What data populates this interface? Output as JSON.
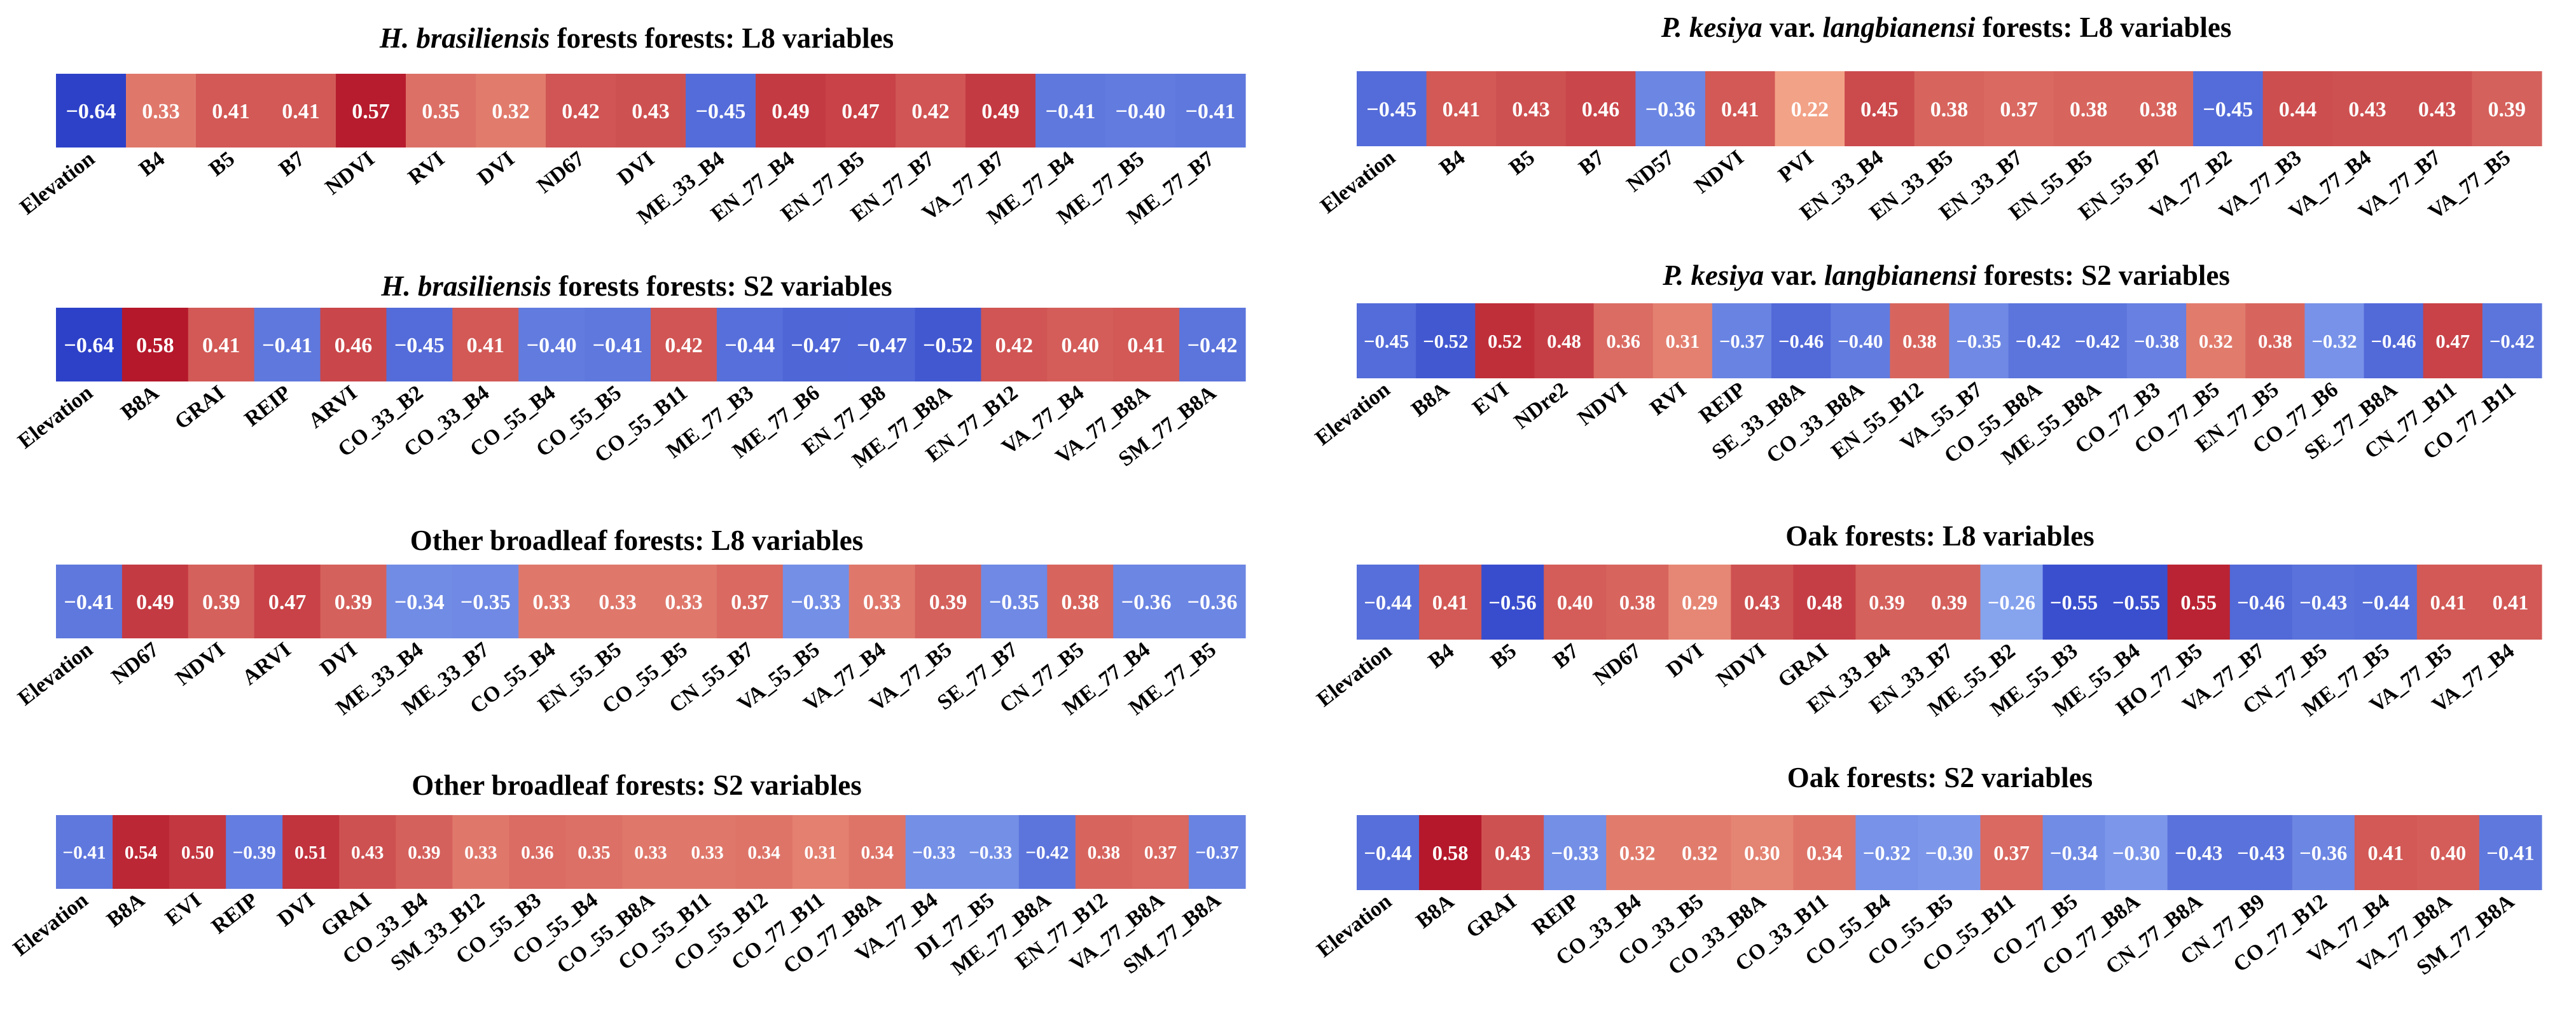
{
  "chart_data": [
    {
      "type": "heatmap",
      "title_italic": "H. brasiliensis",
      "title_rest": " forests forests: L8 variables",
      "categories": [
        "Elevation",
        "B4",
        "B5",
        "B7",
        "NDVI",
        "RVI",
        "DVI",
        "ND67",
        "DVI",
        "ME_33_B4",
        "EN_77_B4",
        "EN_77_B5",
        "EN_77_B7",
        "VA_77_B7",
        "ME_77_B4",
        "ME_77_B5",
        "ME_77_B7"
      ],
      "values": [
        -0.64,
        0.33,
        0.41,
        0.41,
        0.57,
        0.35,
        0.32,
        0.42,
        0.43,
        -0.45,
        0.49,
        0.47,
        0.42,
        0.49,
        -0.41,
        -0.4,
        -0.41
      ],
      "labels": [
        "−0.64",
        "0.33",
        "0.41",
        "0.41",
        "0.57",
        "0.35",
        "0.32",
        "0.42",
        "0.43",
        "−0.45",
        "0.49",
        "0.47",
        "0.42",
        "0.49",
        "−0.41",
        "−0.40",
        "−0.41"
      ]
    },
    {
      "type": "heatmap",
      "title_italic": "H. brasiliensis",
      "title_rest": " forests forests: S2 variables",
      "categories": [
        "Elevation",
        "B8A",
        "GRAI",
        "REIP",
        "ARVI",
        "CO_33_B2",
        "CO_33_B4",
        "CO_55_B4",
        "CO_55_B5",
        "CO_55_B11",
        "ME_77_B3",
        "ME_77_B6",
        "EN_77_B8",
        "ME_77_B8A",
        "EN_77_B12",
        "VA_77_B4",
        "VA_77_B8A",
        "SM_77_B8A"
      ],
      "values": [
        -0.64,
        0.58,
        0.41,
        -0.41,
        0.46,
        -0.45,
        0.41,
        -0.4,
        -0.41,
        0.42,
        -0.44,
        -0.47,
        -0.47,
        -0.52,
        0.42,
        0.4,
        0.41,
        -0.42
      ],
      "labels": [
        "−0.64",
        "0.58",
        "0.41",
        "−0.41",
        "0.46",
        "−0.45",
        "0.41",
        "−0.40",
        "−0.41",
        "0.42",
        "−0.44",
        "−0.47",
        "−0.47",
        "−0.52",
        "0.42",
        "0.40",
        "0.41",
        "−0.42"
      ]
    },
    {
      "type": "heatmap",
      "title_italic": "",
      "title_rest": "Other broadleaf forests: L8 variables",
      "categories": [
        "Elevation",
        "ND67",
        "NDVI",
        "ARVI",
        "DVI",
        "ME_33_B4",
        "ME_33_B7",
        "CO_55_B4",
        "EN_55_B5",
        "CO_55_B5",
        "CN_55_B7",
        "VA_55_B5",
        "VA_77_B4",
        "VA_77_B5",
        "SE_77_B7",
        "CN_77_B5",
        "ME_77_B4",
        "ME_77_B5"
      ],
      "values": [
        -0.41,
        0.49,
        0.39,
        0.47,
        0.39,
        -0.34,
        -0.35,
        0.33,
        0.33,
        0.33,
        0.37,
        -0.33,
        0.33,
        0.39,
        -0.35,
        0.38,
        -0.36,
        -0.36
      ],
      "labels": [
        "−0.41",
        "0.49",
        "0.39",
        "0.47",
        "0.39",
        "−0.34",
        "−0.35",
        "0.33",
        "0.33",
        "0.33",
        "0.37",
        "−0.33",
        "0.33",
        "0.39",
        "−0.35",
        "0.38",
        "−0.36",
        "−0.36"
      ]
    },
    {
      "type": "heatmap",
      "title_italic": "",
      "title_rest": "Other broadleaf forests: S2 variables",
      "categories": [
        "Elevation",
        "B8A",
        "EVI",
        "REIP",
        "DVI",
        "GRAI",
        "CO_33_B4",
        "SM_33_B12",
        "CO_55_B3",
        "CO_55_B4",
        "CO_55_B8A",
        "CO_55_B11",
        "CO_55_B12",
        "CO_77_B11",
        "CO_77_B8A",
        "VA_77_B4",
        "DI_77_B5",
        "ME_77_B8A",
        "EN_77_B12",
        "VA_77_B8A",
        "SM_77_B8A"
      ],
      "values": [
        -0.41,
        0.54,
        0.5,
        -0.39,
        0.51,
        0.43,
        0.39,
        0.33,
        0.36,
        0.35,
        0.33,
        0.33,
        0.34,
        0.31,
        0.34,
        -0.33,
        -0.33,
        -0.42,
        0.38,
        0.37,
        -0.37
      ],
      "labels": [
        "−0.41",
        "0.54",
        "0.50",
        "−0.39",
        "0.51",
        "0.43",
        "0.39",
        "0.33",
        "0.36",
        "0.35",
        "0.33",
        "0.33",
        "0.34",
        "0.31",
        "0.34",
        "−0.33",
        "−0.33",
        "−0.42",
        "0.38",
        "0.37",
        "−0.37"
      ]
    },
    {
      "type": "heatmap",
      "title_italic_1": "P. kesiya",
      "title_mid": " var. ",
      "title_italic_2": "langbianensi",
      "title_rest": " forests: L8 variables",
      "categories": [
        "Elevation",
        "B4",
        "B5",
        "B7",
        "ND57",
        "NDVI",
        "PVI",
        "EN_33_B4",
        "EN_33_B5",
        "EN_33_B7",
        "EN_55_B5",
        "EN_55_B7",
        "VA_77_B2",
        "VA_77_B3",
        "VA_77_B4",
        "VA_77_B7",
        "VA_77_B5"
      ],
      "values": [
        -0.45,
        0.41,
        0.43,
        0.46,
        -0.36,
        0.41,
        0.22,
        0.45,
        0.38,
        0.37,
        0.38,
        0.38,
        -0.45,
        0.44,
        0.43,
        0.43,
        0.39
      ],
      "labels": [
        "−0.45",
        "0.41",
        "0.43",
        "0.46",
        "−0.36",
        "0.41",
        "0.22",
        "0.45",
        "0.38",
        "0.37",
        "0.38",
        "0.38",
        "−0.45",
        "0.44",
        "0.43",
        "0.43",
        "0.39"
      ]
    },
    {
      "type": "heatmap",
      "title_italic_1": "P. kesiya",
      "title_mid": " var. ",
      "title_italic_2": "langbianensi",
      "title_rest": " forests: S2 variables",
      "categories": [
        "Elevation",
        "B8A",
        "EVI",
        "NDre2",
        "NDVI",
        "RVI",
        "REIP",
        "SE_33_B8A",
        "CO_33_B8A",
        "EN_55_B12",
        "VA_55_B7",
        "CO_55_B8A",
        "ME_55_B8A",
        "CO_77_B3",
        "CO_77_B5",
        "EN_77_B5",
        "CO_77_B6",
        "SE_77_B8A",
        "CN_77_B11",
        "CO_77_B11"
      ],
      "values": [
        -0.45,
        -0.52,
        0.52,
        0.48,
        0.36,
        0.31,
        -0.37,
        -0.46,
        -0.4,
        0.38,
        -0.35,
        -0.42,
        -0.42,
        -0.38,
        0.32,
        0.38,
        -0.32,
        -0.46,
        0.47,
        -0.42
      ],
      "labels": [
        "−0.45",
        "−0.52",
        "0.52",
        "0.48",
        "0.36",
        "0.31",
        "−0.37",
        "−0.46",
        "−0.40",
        "0.38",
        "−0.35",
        "−0.42",
        "−0.42",
        "−0.38",
        "0.32",
        "0.38",
        "−0.32",
        "−0.46",
        "0.47",
        "−0.42"
      ]
    },
    {
      "type": "heatmap",
      "title_italic": "",
      "title_rest": "Oak  forests: L8 variables",
      "categories": [
        "Elevation",
        "B4",
        "B5",
        "B7",
        "ND67",
        "DVI",
        "NDVI",
        "GRAI",
        "EN_33_B4",
        "EN_33_B7",
        "ME_55_B2",
        "ME_55_B3",
        "ME_55_B4",
        "HO_77_B5",
        "VA_77_B7",
        "CN_77_B5",
        "ME_77_B5",
        "VA_77_B5",
        "VA_77_B4"
      ],
      "values": [
        -0.44,
        0.41,
        -0.56,
        0.4,
        0.38,
        0.29,
        0.43,
        0.48,
        0.39,
        0.39,
        -0.26,
        -0.55,
        -0.55,
        0.55,
        -0.46,
        -0.43,
        -0.44,
        0.41,
        0.41
      ],
      "labels": [
        "−0.44",
        "0.41",
        "−0.56",
        "0.40",
        "0.38",
        "0.29",
        "0.43",
        "0.48",
        "0.39",
        "0.39",
        "−0.26",
        "−0.55",
        "−0.55",
        "0.55",
        "−0.46",
        "−0.43",
        "−0.44",
        "0.41",
        "0.41"
      ]
    },
    {
      "type": "heatmap",
      "title_italic": "",
      "title_rest": "Oak  forests: S2 variables",
      "categories": [
        "Elevation",
        "B8A",
        "GRAI",
        "REIP",
        "CO_33_B4",
        "CO_33_B5",
        "CO_33_B8A",
        "CO_33_B11",
        "CO_55_B4",
        "CO_55_B5",
        "CO_55_B11",
        "CO_77_B5",
        "CO_77_B8A",
        "CN_77_B8A",
        "CN_77_B9",
        "CO_77_B12",
        "VA_77_B4",
        "VA_77_B8A",
        "SM_77_B8A"
      ],
      "values": [
        -0.44,
        0.58,
        0.43,
        -0.33,
        0.32,
        0.32,
        0.3,
        0.34,
        -0.32,
        -0.3,
        0.37,
        -0.34,
        -0.3,
        -0.43,
        -0.43,
        -0.36,
        0.41,
        0.4,
        -0.41
      ],
      "labels": [
        "−0.44",
        "0.58",
        "0.43",
        "−0.33",
        "0.32",
        "0.32",
        "0.30",
        "0.34",
        "−0.32",
        "−0.30",
        "0.37",
        "−0.34",
        "−0.30",
        "−0.43",
        "−0.43",
        "−0.36",
        "0.41",
        "0.40",
        "−0.41"
      ]
    }
  ]
}
